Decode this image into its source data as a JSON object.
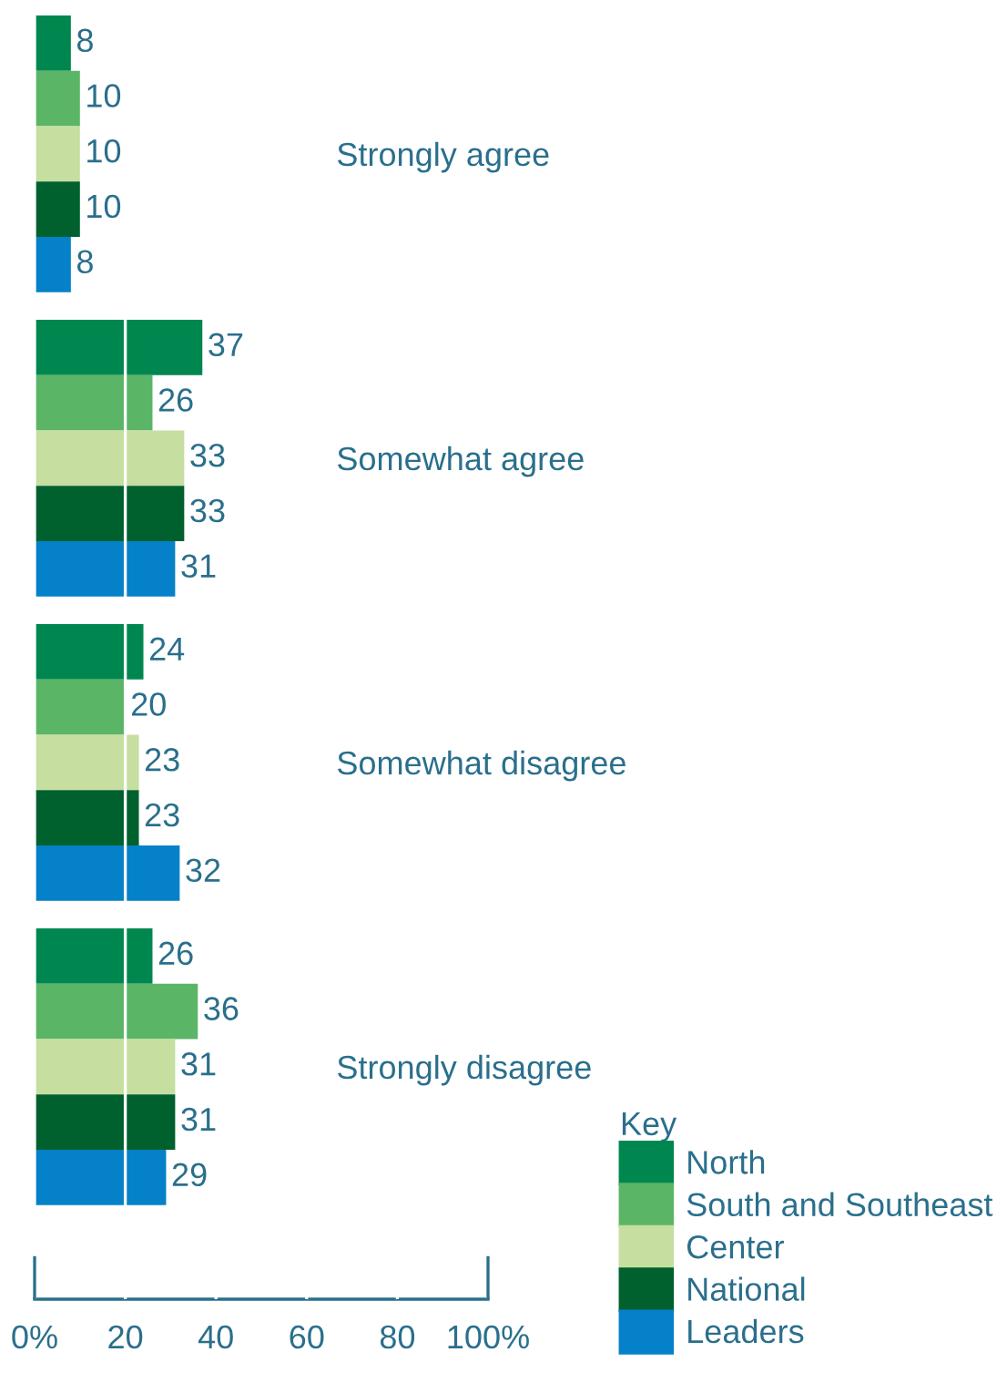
{
  "chart_data": {
    "type": "bar",
    "orientation": "horizontal",
    "categories": [
      "Strongly agree",
      "Somewhat agree",
      "Somewhat disagree",
      "Strongly disagree"
    ],
    "series": [
      {
        "name": "North",
        "color": "#00874f",
        "values": [
          8,
          37,
          24,
          26
        ]
      },
      {
        "name": "South and Southeast",
        "color": "#5bb566",
        "values": [
          10,
          26,
          20,
          36
        ]
      },
      {
        "name": "Center",
        "color": "#c6dea0",
        "values": [
          10,
          33,
          23,
          31
        ]
      },
      {
        "name": "National",
        "color": "#00612e",
        "values": [
          10,
          33,
          23,
          31
        ]
      },
      {
        "name": "Leaders",
        "color": "#0481c8",
        "values": [
          8,
          31,
          32,
          29
        ]
      }
    ],
    "xlim": [
      0,
      100
    ],
    "xticks": [
      {
        "value": 0,
        "label": "0%"
      },
      20,
      40,
      60,
      80,
      {
        "value": 100,
        "label": "100%"
      }
    ],
    "grid": "x",
    "data_labels": true,
    "legend": "bottom right",
    "legend_title": "Key"
  }
}
